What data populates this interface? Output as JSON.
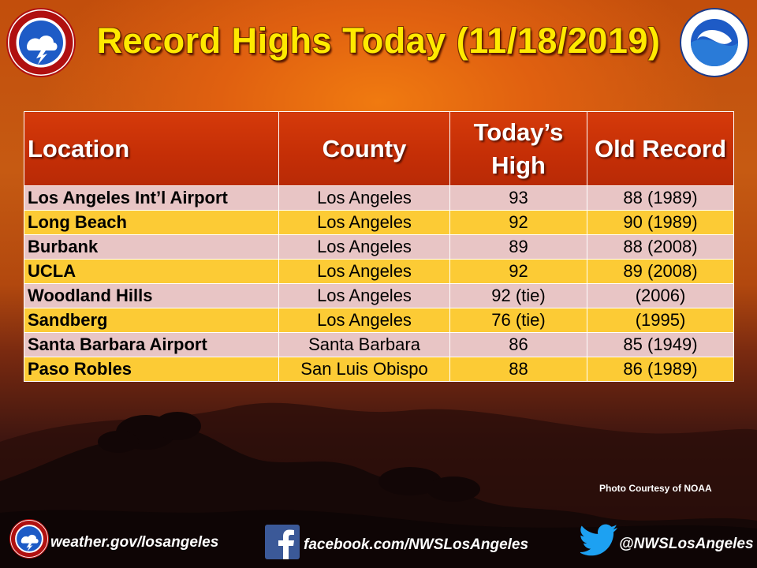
{
  "title": "Record Highs Today (11/18/2019)",
  "logos": {
    "left": "nws-logo-icon",
    "right": "noaa-logo-icon"
  },
  "table": {
    "headers": {
      "location": "Location",
      "county": "County",
      "todays_high": "Today’s High",
      "old_record": "Old Record"
    },
    "rows": [
      {
        "location": "Los Angeles Int’l Airport",
        "county": "Los Angeles",
        "todays_high": "93",
        "old_record": "88 (1989)"
      },
      {
        "location": "Long Beach",
        "county": "Los Angeles",
        "todays_high": "92",
        "old_record": "90 (1989)"
      },
      {
        "location": "Burbank",
        "county": "Los Angeles",
        "todays_high": "89",
        "old_record": "88 (2008)"
      },
      {
        "location": "UCLA",
        "county": "Los Angeles",
        "todays_high": "92",
        "old_record": "89 (2008)"
      },
      {
        "location": "Woodland Hills",
        "county": "Los Angeles",
        "todays_high": "92 (tie)",
        "old_record": "(2006)"
      },
      {
        "location": "Sandberg",
        "county": "Los Angeles",
        "todays_high": "76 (tie)",
        "old_record": "(1995)"
      },
      {
        "location": "Santa Barbara Airport",
        "county": "Santa Barbara",
        "todays_high": "86",
        "old_record": "85 (1949)"
      },
      {
        "location": "Paso Robles",
        "county": "San Luis Obispo",
        "todays_high": "88",
        "old_record": "86 (1989)"
      }
    ]
  },
  "credit": "Photo Courtesy  of NOAA",
  "footer": {
    "website": "weather.gov/losangeles",
    "facebook": "facebook.com/NWSLosAngeles",
    "twitter": "@NWSLosAngeles"
  },
  "colors": {
    "title": "#ffea00",
    "header_bg": "#c42e06",
    "row_pink": "#e8c5c5",
    "row_gold": "#fccb35"
  }
}
